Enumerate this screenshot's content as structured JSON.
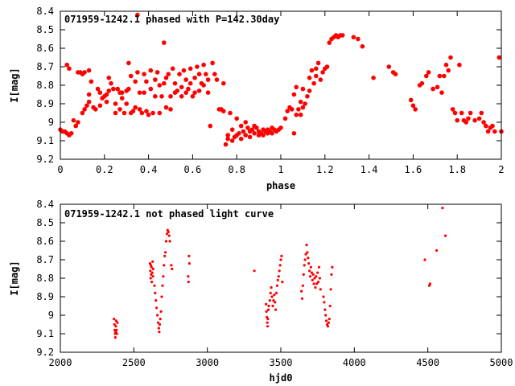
{
  "chart_data": [
    {
      "type": "scatter",
      "title": "071959-1242.1 phased with P=142.30day",
      "xlabel": "phase",
      "ylabel": "I[mag]",
      "xlim": [
        0,
        2
      ],
      "ylim": [
        8.4,
        9.2
      ],
      "y_inverted": true,
      "grid": false,
      "marker": "filled-circle",
      "color": "#ff0000",
      "xticks": [
        "0",
        "0.2",
        "0.4",
        "0.6",
        "0.8",
        "1",
        "1.2",
        "1.4",
        "1.6",
        "1.8",
        "2"
      ],
      "xtick_values": [
        0,
        0.2,
        0.4,
        0.6,
        0.8,
        1,
        1.2,
        1.4,
        1.6,
        1.8,
        2
      ],
      "yticks": [
        "8.4",
        "8.5",
        "8.6",
        "8.7",
        "8.8",
        "8.9",
        "9",
        "9.1",
        "9.2"
      ],
      "ytick_values": [
        8.4,
        8.5,
        8.6,
        8.7,
        8.8,
        8.9,
        9.0,
        9.1,
        9.2
      ],
      "points": [
        [
          0.0,
          9.04
        ],
        [
          0.01,
          9.05
        ],
        [
          0.02,
          9.05
        ],
        [
          0.03,
          9.06
        ],
        [
          0.04,
          9.07
        ],
        [
          0.05,
          9.06
        ],
        [
          0.03,
          8.69
        ],
        [
          0.04,
          8.71
        ],
        [
          0.06,
          8.99
        ],
        [
          0.07,
          9.02
        ],
        [
          0.08,
          9.0
        ],
        [
          0.08,
          8.73
        ],
        [
          0.09,
          8.73
        ],
        [
          0.1,
          8.74
        ],
        [
          0.11,
          8.73
        ],
        [
          0.1,
          8.95
        ],
        [
          0.11,
          8.93
        ],
        [
          0.12,
          8.91
        ],
        [
          0.13,
          8.85
        ],
        [
          0.13,
          8.89
        ],
        [
          0.13,
          8.72
        ],
        [
          0.14,
          8.78
        ],
        [
          0.15,
          8.92
        ],
        [
          0.16,
          8.93
        ],
        [
          0.17,
          8.82
        ],
        [
          0.18,
          8.84
        ],
        [
          0.18,
          8.91
        ],
        [
          0.19,
          8.87
        ],
        [
          0.2,
          8.86
        ],
        [
          0.21,
          8.85
        ],
        [
          0.21,
          8.89
        ],
        [
          0.22,
          8.83
        ],
        [
          0.22,
          8.76
        ],
        [
          0.23,
          8.79
        ],
        [
          0.24,
          8.82
        ],
        [
          0.25,
          8.9
        ],
        [
          0.25,
          8.95
        ],
        [
          0.26,
          8.82
        ],
        [
          0.27,
          8.84
        ],
        [
          0.27,
          8.93
        ],
        [
          0.28,
          8.87
        ],
        [
          0.28,
          8.84
        ],
        [
          0.29,
          8.95
        ],
        [
          0.3,
          8.9
        ],
        [
          0.3,
          8.83
        ],
        [
          0.31,
          8.82
        ],
        [
          0.31,
          8.68
        ],
        [
          0.32,
          8.95
        ],
        [
          0.32,
          8.75
        ],
        [
          0.33,
          8.94
        ],
        [
          0.34,
          8.78
        ],
        [
          0.34,
          8.92
        ],
        [
          0.35,
          8.42
        ],
        [
          0.35,
          8.73
        ],
        [
          0.36,
          8.84
        ],
        [
          0.36,
          8.93
        ],
        [
          0.37,
          8.95
        ],
        [
          0.38,
          8.74
        ],
        [
          0.38,
          8.84
        ],
        [
          0.39,
          8.94
        ],
        [
          0.39,
          8.78
        ],
        [
          0.4,
          8.96
        ],
        [
          0.41,
          8.82
        ],
        [
          0.41,
          8.72
        ],
        [
          0.42,
          8.95
        ],
        [
          0.43,
          8.77
        ],
        [
          0.43,
          8.86
        ],
        [
          0.44,
          8.73
        ],
        [
          0.45,
          8.8
        ],
        [
          0.45,
          8.95
        ],
        [
          0.46,
          8.86
        ],
        [
          0.47,
          8.57
        ],
        [
          0.47,
          8.79
        ],
        [
          0.48,
          8.76
        ],
        [
          0.48,
          8.92
        ],
        [
          0.49,
          8.74
        ],
        [
          0.5,
          8.86
        ],
        [
          0.5,
          8.93
        ],
        [
          0.51,
          8.71
        ],
        [
          0.52,
          8.84
        ],
        [
          0.52,
          8.79
        ],
        [
          0.53,
          8.83
        ],
        [
          0.54,
          8.74
        ],
        [
          0.55,
          8.86
        ],
        [
          0.55,
          8.81
        ],
        [
          0.56,
          8.72
        ],
        [
          0.57,
          8.84
        ],
        [
          0.57,
          8.77
        ],
        [
          0.58,
          8.82
        ],
        [
          0.59,
          8.71
        ],
        [
          0.59,
          8.79
        ],
        [
          0.6,
          8.86
        ],
        [
          0.61,
          8.76
        ],
        [
          0.61,
          8.84
        ],
        [
          0.62,
          8.7
        ],
        [
          0.63,
          8.83
        ],
        [
          0.63,
          8.74
        ],
        [
          0.64,
          8.79
        ],
        [
          0.65,
          8.69
        ],
        [
          0.65,
          8.8
        ],
        [
          0.66,
          8.74
        ],
        [
          0.67,
          8.77
        ],
        [
          0.67,
          8.84
        ],
        [
          0.68,
          9.02
        ],
        [
          0.69,
          8.68
        ],
        [
          0.7,
          8.74
        ],
        [
          0.71,
          8.77
        ],
        [
          0.72,
          8.93
        ],
        [
          0.73,
          8.93
        ],
        [
          0.74,
          8.79
        ],
        [
          0.74,
          8.94
        ],
        [
          0.75,
          9.12
        ],
        [
          0.76,
          9.09
        ],
        [
          0.76,
          9.07
        ],
        [
          0.77,
          8.95
        ],
        [
          0.78,
          9.1
        ],
        [
          0.78,
          9.04
        ],
        [
          0.79,
          9.08
        ],
        [
          0.8,
          8.98
        ],
        [
          0.8,
          9.07
        ],
        [
          0.81,
          9.06
        ],
        [
          0.82,
          9.02
        ],
        [
          0.82,
          9.09
        ],
        [
          0.83,
          9.05
        ],
        [
          0.84,
          9.0
        ],
        [
          0.84,
          9.07
        ],
        [
          0.85,
          9.03
        ],
        [
          0.86,
          9.05
        ],
        [
          0.86,
          9.08
        ],
        [
          0.87,
          9.04
        ],
        [
          0.88,
          9.02
        ],
        [
          0.88,
          9.06
        ],
        [
          0.89,
          9.03
        ],
        [
          0.9,
          9.07
        ],
        [
          0.9,
          9.05
        ],
        [
          0.91,
          9.06
        ],
        [
          0.92,
          9.04
        ],
        [
          0.92,
          9.07
        ],
        [
          0.93,
          9.05
        ],
        [
          0.94,
          9.06
        ],
        [
          0.94,
          9.04
        ],
        [
          0.95,
          9.05
        ],
        [
          0.96,
          9.03
        ],
        [
          0.96,
          9.06
        ],
        [
          0.97,
          9.04
        ],
        [
          0.98,
          9.05
        ],
        [
          0.99,
          9.04
        ],
        [
          1.0,
          9.03
        ],
        [
          1.02,
          8.98
        ],
        [
          1.03,
          8.94
        ],
        [
          1.04,
          8.92
        ],
        [
          1.05,
          8.93
        ],
        [
          1.06,
          8.85
        ],
        [
          1.06,
          9.06
        ],
        [
          1.07,
          8.81
        ],
        [
          1.07,
          8.96
        ],
        [
          1.08,
          8.93
        ],
        [
          1.09,
          8.89
        ],
        [
          1.09,
          8.96
        ],
        [
          1.1,
          8.82
        ],
        [
          1.1,
          8.92
        ],
        [
          1.11,
          8.9
        ],
        [
          1.12,
          8.86
        ],
        [
          1.13,
          8.76
        ],
        [
          1.13,
          8.83
        ],
        [
          1.14,
          8.72
        ],
        [
          1.15,
          8.79
        ],
        [
          1.16,
          8.75
        ],
        [
          1.16,
          8.71
        ],
        [
          1.17,
          8.68
        ],
        [
          1.18,
          8.77
        ],
        [
          1.19,
          8.73
        ],
        [
          1.2,
          8.71
        ],
        [
          1.21,
          8.7
        ],
        [
          1.22,
          8.57
        ],
        [
          1.23,
          8.55
        ],
        [
          1.24,
          8.54
        ],
        [
          1.25,
          8.53
        ],
        [
          1.26,
          8.54
        ],
        [
          1.27,
          8.53
        ],
        [
          1.28,
          8.53
        ],
        [
          1.33,
          8.54
        ],
        [
          1.35,
          8.55
        ],
        [
          1.37,
          8.59
        ],
        [
          1.42,
          8.76
        ],
        [
          1.49,
          8.7
        ],
        [
          1.51,
          8.73
        ],
        [
          1.52,
          8.74
        ],
        [
          1.59,
          8.88
        ],
        [
          1.6,
          8.91
        ],
        [
          1.61,
          8.93
        ],
        [
          1.63,
          8.8
        ],
        [
          1.64,
          8.79
        ],
        [
          1.66,
          8.75
        ],
        [
          1.67,
          8.73
        ],
        [
          1.69,
          8.82
        ],
        [
          1.71,
          8.81
        ],
        [
          1.72,
          8.75
        ],
        [
          1.73,
          8.84
        ],
        [
          1.74,
          8.75
        ],
        [
          1.75,
          8.69
        ],
        [
          1.76,
          8.72
        ],
        [
          1.77,
          8.65
        ],
        [
          1.78,
          8.93
        ],
        [
          1.79,
          8.95
        ],
        [
          1.8,
          8.99
        ],
        [
          1.81,
          8.69
        ],
        [
          1.82,
          8.95
        ],
        [
          1.83,
          8.99
        ],
        [
          1.84,
          9.0
        ],
        [
          1.85,
          8.98
        ],
        [
          1.86,
          8.95
        ],
        [
          1.88,
          8.99
        ],
        [
          1.9,
          8.98
        ],
        [
          1.91,
          8.95
        ],
        [
          1.92,
          9.0
        ],
        [
          1.93,
          9.02
        ],
        [
          1.94,
          9.05
        ],
        [
          1.95,
          9.03
        ],
        [
          1.96,
          9.02
        ],
        [
          1.97,
          9.05
        ],
        [
          1.99,
          8.65
        ],
        [
          2.0,
          9.05
        ]
      ]
    },
    {
      "type": "scatter",
      "title": "071959-1242.1 not phased light curve",
      "xlabel": "hjd0",
      "ylabel": "I[mag]",
      "xlim": [
        2000,
        5000
      ],
      "ylim": [
        8.4,
        9.2
      ],
      "y_inverted": true,
      "grid": false,
      "marker": "small-dot",
      "color": "#ff0000",
      "xticks": [
        "2000",
        "2500",
        "3000",
        "3500",
        "4000",
        "4500",
        "5000"
      ],
      "xtick_values": [
        2000,
        2500,
        3000,
        3500,
        4000,
        4500,
        5000
      ],
      "yticks": [
        "8.4",
        "8.5",
        "8.6",
        "8.7",
        "8.8",
        "8.9",
        "9",
        "9.1",
        "9.2"
      ],
      "ytick_values": [
        8.4,
        8.5,
        8.6,
        8.7,
        8.8,
        8.9,
        9.0,
        9.1,
        9.2
      ],
      "points": [
        [
          2365,
          9.02
        ],
        [
          2368,
          9.05
        ],
        [
          2370,
          9.08
        ],
        [
          2372,
          9.1
        ],
        [
          2374,
          9.12
        ],
        [
          2376,
          9.09
        ],
        [
          2378,
          9.06
        ],
        [
          2380,
          9.03
        ],
        [
          2382,
          9.08
        ],
        [
          2385,
          9.1
        ],
        [
          2388,
          9.04
        ],
        [
          2610,
          8.72
        ],
        [
          2612,
          8.76
        ],
        [
          2614,
          8.8
        ],
        [
          2616,
          8.73
        ],
        [
          2618,
          8.78
        ],
        [
          2620,
          8.74
        ],
        [
          2622,
          8.82
        ],
        [
          2625,
          8.77
        ],
        [
          2628,
          8.71
        ],
        [
          2630,
          8.79
        ],
        [
          2632,
          8.75
        ],
        [
          2640,
          8.84
        ],
        [
          2645,
          8.88
        ],
        [
          2650,
          8.92
        ],
        [
          2655,
          8.96
        ],
        [
          2660,
          9.0
        ],
        [
          2665,
          9.04
        ],
        [
          2670,
          9.07
        ],
        [
          2673,
          9.09
        ],
        [
          2676,
          9.05
        ],
        [
          2680,
          9.02
        ],
        [
          2685,
          8.98
        ],
        [
          2690,
          8.9
        ],
        [
          2695,
          8.84
        ],
        [
          2700,
          8.79
        ],
        [
          2705,
          8.73
        ],
        [
          2710,
          8.68
        ],
        [
          2715,
          8.66
        ],
        [
          2720,
          8.6
        ],
        [
          2725,
          8.56
        ],
        [
          2730,
          8.54
        ],
        [
          2735,
          8.55
        ],
        [
          2740,
          8.57
        ],
        [
          2745,
          8.6
        ],
        [
          2755,
          8.73
        ],
        [
          2760,
          8.75
        ],
        [
          2870,
          8.79
        ],
        [
          2872,
          8.82
        ],
        [
          2875,
          8.68
        ],
        [
          2878,
          8.72
        ],
        [
          3320,
          8.76
        ],
        [
          3400,
          8.94
        ],
        [
          3402,
          8.98
        ],
        [
          3405,
          9.01
        ],
        [
          3408,
          9.04
        ],
        [
          3410,
          9.06
        ],
        [
          3412,
          9.02
        ],
        [
          3415,
          8.97
        ],
        [
          3418,
          8.95
        ],
        [
          3425,
          8.92
        ],
        [
          3430,
          8.88
        ],
        [
          3435,
          8.85
        ],
        [
          3440,
          8.9
        ],
        [
          3445,
          8.95
        ],
        [
          3450,
          8.92
        ],
        [
          3455,
          8.89
        ],
        [
          3460,
          8.93
        ],
        [
          3465,
          8.97
        ],
        [
          3470,
          8.88
        ],
        [
          3475,
          8.84
        ],
        [
          3480,
          8.81
        ],
        [
          3485,
          8.79
        ],
        [
          3490,
          8.76
        ],
        [
          3495,
          8.73
        ],
        [
          3500,
          8.7
        ],
        [
          3505,
          8.68
        ],
        [
          3510,
          8.82
        ],
        [
          3640,
          8.87
        ],
        [
          3645,
          8.91
        ],
        [
          3650,
          8.84
        ],
        [
          3655,
          8.78
        ],
        [
          3660,
          8.73
        ],
        [
          3665,
          8.7
        ],
        [
          3670,
          8.67
        ],
        [
          3675,
          8.62
        ],
        [
          3680,
          8.66
        ],
        [
          3685,
          8.69
        ],
        [
          3690,
          8.72
        ],
        [
          3695,
          8.76
        ],
        [
          3700,
          8.79
        ],
        [
          3705,
          8.74
        ],
        [
          3710,
          8.77
        ],
        [
          3715,
          8.81
        ],
        [
          3720,
          8.78
        ],
        [
          3725,
          8.83
        ],
        [
          3730,
          8.8
        ],
        [
          3735,
          8.85
        ],
        [
          3740,
          8.79
        ],
        [
          3745,
          8.83
        ],
        [
          3750,
          8.77
        ],
        [
          3755,
          8.82
        ],
        [
          3760,
          8.74
        ],
        [
          3765,
          8.8
        ],
        [
          3770,
          8.86
        ],
        [
          3790,
          8.9
        ],
        [
          3795,
          8.93
        ],
        [
          3800,
          8.97
        ],
        [
          3805,
          9.0
        ],
        [
          3810,
          9.03
        ],
        [
          3815,
          9.05
        ],
        [
          3820,
          9.06
        ],
        [
          3825,
          9.04
        ],
        [
          3830,
          9.02
        ],
        [
          3835,
          8.95
        ],
        [
          3840,
          8.86
        ],
        [
          3845,
          8.78
        ],
        [
          3850,
          8.74
        ],
        [
          4480,
          8.7
        ],
        [
          4510,
          8.84
        ],
        [
          4515,
          8.83
        ],
        [
          4560,
          8.65
        ],
        [
          4600,
          8.42
        ],
        [
          4620,
          8.57
        ]
      ]
    }
  ]
}
